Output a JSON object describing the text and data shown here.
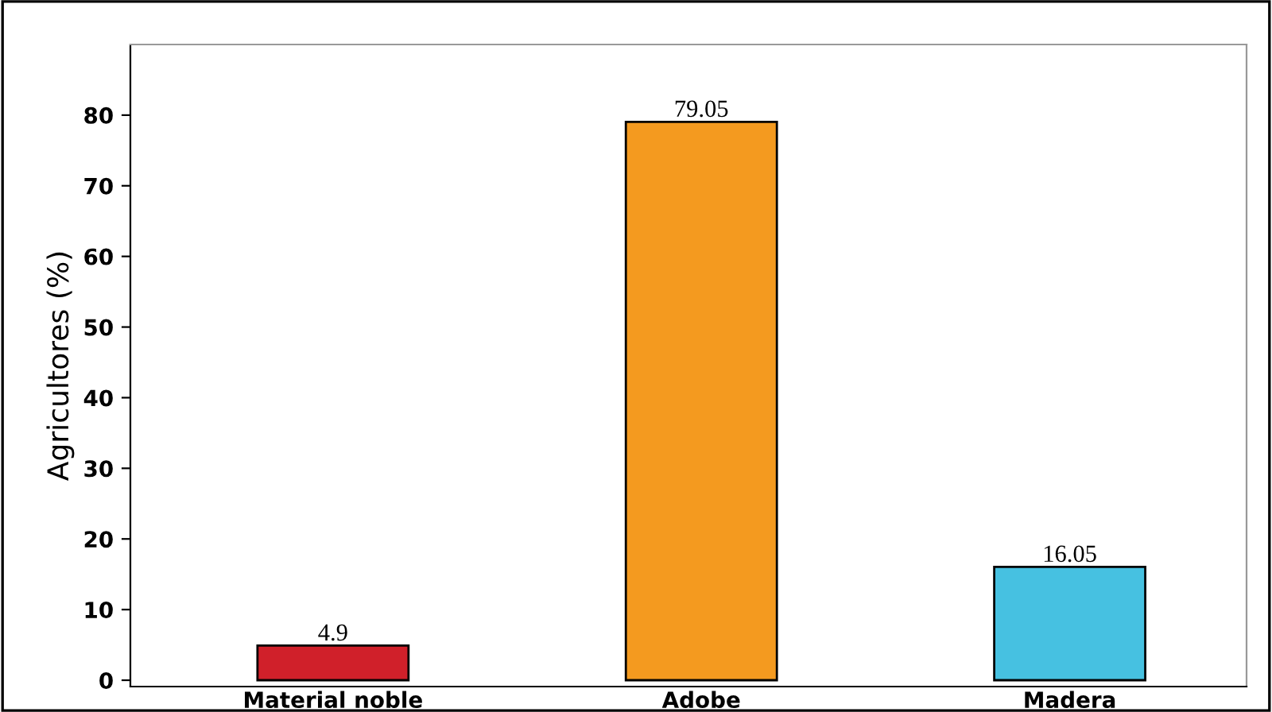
{
  "chart_data": {
    "type": "bar",
    "ylabel": "Agricultores (%)",
    "categories": [
      "Material noble",
      "Adobe",
      "Madera"
    ],
    "values": [
      4.9,
      79.05,
      16.05
    ],
    "colors": [
      "#d0202a",
      "#f49a1f",
      "#46c1e1"
    ],
    "ylim": [
      -0.9,
      90
    ],
    "yticks": [
      0,
      10,
      20,
      30,
      40,
      50,
      60,
      70,
      80
    ],
    "data_labels": true,
    "grid": false,
    "legend": false
  }
}
